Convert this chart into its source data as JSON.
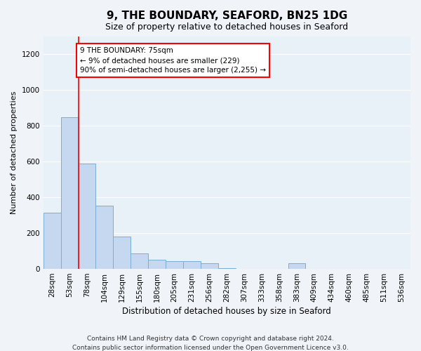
{
  "title": "9, THE BOUNDARY, SEAFORD, BN25 1DG",
  "subtitle": "Size of property relative to detached houses in Seaford",
  "xlabel": "Distribution of detached houses by size in Seaford",
  "ylabel": "Number of detached properties",
  "bar_labels": [
    "28sqm",
    "53sqm",
    "78sqm",
    "104sqm",
    "129sqm",
    "155sqm",
    "180sqm",
    "205sqm",
    "231sqm",
    "256sqm",
    "282sqm",
    "307sqm",
    "333sqm",
    "358sqm",
    "383sqm",
    "409sqm",
    "434sqm",
    "460sqm",
    "485sqm",
    "511sqm",
    "536sqm"
  ],
  "bar_values": [
    315,
    850,
    590,
    355,
    180,
    85,
    50,
    45,
    45,
    30,
    5,
    0,
    0,
    0,
    30,
    0,
    0,
    0,
    0,
    0,
    0
  ],
  "bar_color": "#c5d8f0",
  "bar_edge_color": "#7badd4",
  "ylim": [
    0,
    1300
  ],
  "yticks": [
    0,
    200,
    400,
    600,
    800,
    1000,
    1200
  ],
  "property_line_x": 2,
  "annotation_title": "9 THE BOUNDARY: 75sqm",
  "annotation_line1": "← 9% of detached houses are smaller (229)",
  "annotation_line2": "90% of semi-detached houses are larger (2,255) →",
  "footer1": "Contains HM Land Registry data © Crown copyright and database right 2024.",
  "footer2": "Contains public sector information licensed under the Open Government Licence v3.0.",
  "background_color": "#f0f4f8",
  "plot_background_color": "#e8f0f8",
  "grid_color": "#ffffff",
  "title_fontsize": 11,
  "subtitle_fontsize": 9,
  "xlabel_fontsize": 8.5,
  "ylabel_fontsize": 8,
  "tick_fontsize": 7.5,
  "footer_fontsize": 6.5
}
